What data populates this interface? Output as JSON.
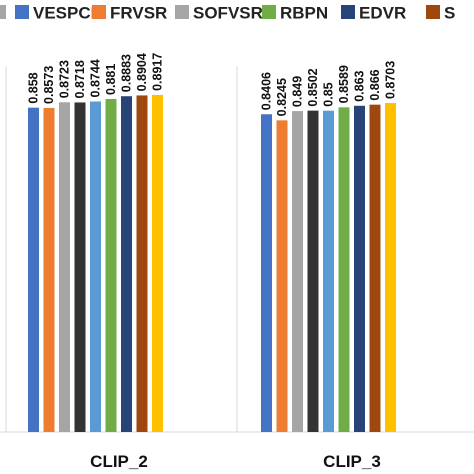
{
  "chart_data": {
    "type": "bar",
    "title": "",
    "xlabel": "",
    "ylabel": "",
    "ylim": [
      0,
      1
    ],
    "grid": false,
    "legend_position": "top",
    "categories": [
      "CLIP_2",
      "CLIP_3"
    ],
    "series": [
      {
        "name": "VESPCN",
        "color": "#4472C4",
        "values": [
          0.858,
          0.8406
        ],
        "labels": [
          "0.858",
          "0.8406"
        ]
      },
      {
        "name": "FRVSR",
        "color": "#ED7D31",
        "values": [
          0.8573,
          0.8245
        ],
        "labels": [
          "0.8573",
          "0.8245"
        ]
      },
      {
        "name": "SOFVSR",
        "color": "#A5A5A5",
        "values": [
          0.8723,
          0.849
        ],
        "labels": [
          "0.8723",
          "0.849"
        ]
      },
      {
        "name": "",
        "color": "#333333",
        "values": [
          0.8718,
          0.8502
        ],
        "labels": [
          "0.8718",
          "0.8502"
        ]
      },
      {
        "name": "",
        "color": "#5B9BD5",
        "values": [
          0.8744,
          0.85
        ],
        "labels": [
          "0.8744",
          "0.85"
        ]
      },
      {
        "name": "RBPN",
        "color": "#70AD47",
        "values": [
          0.881,
          0.8589
        ],
        "labels": [
          "0.881",
          "0.8589"
        ]
      },
      {
        "name": "EDVR",
        "color": "#264478",
        "values": [
          0.8883,
          0.863
        ],
        "labels": [
          "0.8883",
          "0.863"
        ]
      },
      {
        "name": "S",
        "color": "#9E480E",
        "values": [
          0.8904,
          0.866
        ],
        "labels": [
          "0.8904",
          "0.866"
        ]
      },
      {
        "name": "",
        "color": "#FFC000",
        "values": [
          0.8917,
          0.8703
        ],
        "labels": [
          "0.8917",
          "0.8703"
        ]
      }
    ],
    "legend": [
      {
        "label": "VESPCN",
        "color": "#4472C4"
      },
      {
        "label": "FRVSR",
        "color": "#ED7D31"
      },
      {
        "label": "SOFVSR",
        "color": "#A5A5A5"
      },
      {
        "label": "RBPN",
        "color": "#70AD47"
      },
      {
        "label": "EDVR",
        "color": "#264478"
      },
      {
        "label": "S",
        "color": "#9E480E"
      }
    ],
    "legend_leading_swatch_color": "#A5A5A5"
  }
}
